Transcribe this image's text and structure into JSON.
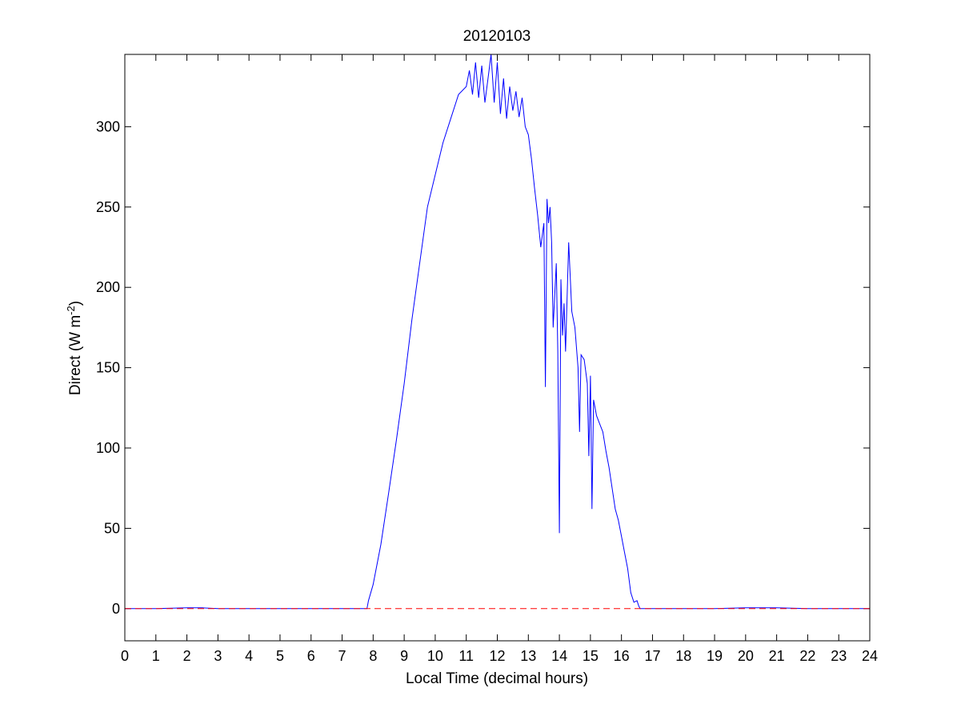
{
  "chart_data": {
    "type": "line",
    "title": "20120103",
    "xlabel": "Local Time (decimal hours)",
    "ylabel_main": "Direct (W m",
    "ylabel_sup": "-2",
    "ylabel_end": ")",
    "xlim": [
      0,
      24
    ],
    "ylim": [
      -20,
      345
    ],
    "x_ticks": [
      0,
      1,
      2,
      3,
      4,
      5,
      6,
      7,
      8,
      9,
      10,
      11,
      12,
      13,
      14,
      15,
      16,
      17,
      18,
      19,
      20,
      21,
      22,
      23,
      24
    ],
    "y_ticks": [
      0,
      50,
      100,
      150,
      200,
      250,
      300
    ],
    "grid": false,
    "series": [
      {
        "color": "#0000ff",
        "style": "solid",
        "x": [
          0,
          1,
          2,
          2.5,
          3,
          4,
          5,
          5.5,
          6,
          7,
          7.8,
          7.85,
          8,
          8.25,
          8.5,
          8.75,
          9,
          9.25,
          9.5,
          9.75,
          10,
          10.25,
          10.5,
          10.75,
          11,
          11.1,
          11.2,
          11.3,
          11.4,
          11.5,
          11.6,
          11.7,
          11.8,
          11.9,
          12,
          12.1,
          12.2,
          12.3,
          12.4,
          12.5,
          12.6,
          12.7,
          12.8,
          12.9,
          13,
          13.1,
          13.2,
          13.3,
          13.4,
          13.5,
          13.55,
          13.6,
          13.65,
          13.7,
          13.75,
          13.8,
          13.9,
          13.95,
          14.0,
          14.05,
          14.1,
          14.15,
          14.2,
          14.3,
          14.4,
          14.5,
          14.6,
          14.65,
          14.7,
          14.8,
          14.9,
          14.95,
          15.0,
          15.05,
          15.1,
          15.2,
          15.3,
          15.4,
          15.5,
          15.6,
          15.7,
          15.8,
          15.9,
          16.0,
          16.1,
          16.2,
          16.3,
          16.4,
          16.5,
          16.55,
          16.6,
          16.7,
          16.8,
          17,
          18,
          19,
          20,
          21,
          22,
          23,
          24
        ],
        "y": [
          0,
          0,
          0.5,
          0.5,
          0,
          0,
          0,
          0,
          0,
          0,
          0,
          5,
          15,
          40,
          72,
          105,
          140,
          180,
          215,
          250,
          270,
          290,
          305,
          320,
          325,
          335,
          320,
          340,
          318,
          338,
          315,
          330,
          345,
          315,
          340,
          308,
          330,
          305,
          325,
          310,
          322,
          306,
          318,
          300,
          295,
          280,
          262,
          245,
          225,
          240,
          138,
          255,
          240,
          250,
          228,
          175,
          215,
          160,
          47,
          205,
          170,
          190,
          160,
          228,
          185,
          175,
          150,
          110,
          158,
          155,
          140,
          95,
          145,
          62,
          130,
          120,
          115,
          110,
          98,
          88,
          75,
          62,
          55,
          45,
          35,
          25,
          10,
          4,
          5,
          2,
          0,
          0,
          0,
          0,
          0,
          0,
          0.5,
          0.5,
          0,
          0,
          0
        ]
      },
      {
        "color": "#ff0000",
        "style": "dashed",
        "x": [
          0,
          24
        ],
        "y": [
          0,
          0
        ]
      }
    ]
  }
}
